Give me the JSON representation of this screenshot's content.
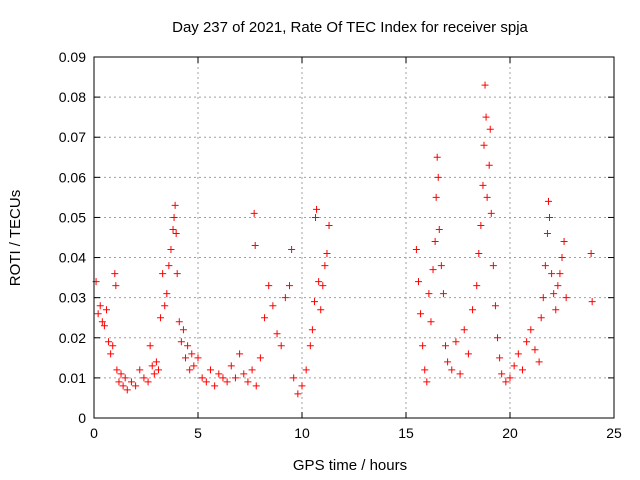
{
  "chart_data": {
    "type": "scatter",
    "title": "Day 237 of 2021, Rate Of TEC Index for receiver spja",
    "xlabel": "GPS time / hours",
    "ylabel": "ROTI / TECUs",
    "xlim": [
      0,
      25
    ],
    "ylim": [
      0,
      0.09
    ],
    "xticks": [
      0,
      5,
      10,
      15,
      20,
      25
    ],
    "xtick_labels": [
      "0",
      "5",
      "10",
      "15",
      "20",
      "25"
    ],
    "yticks": [
      0,
      0.01,
      0.02,
      0.03,
      0.04,
      0.05,
      0.06,
      0.07,
      0.08,
      0.09
    ],
    "ytick_labels": [
      "0",
      "0.01",
      "0.02",
      "0.03",
      "0.04",
      "0.05",
      "0.06",
      "0.07",
      "0.08",
      "0.09"
    ],
    "grid": true,
    "marker": "+",
    "series": [
      {
        "name": "ROTI",
        "color": "#ff0000",
        "points": [
          [
            0.1,
            0.034
          ],
          [
            0.2,
            0.026
          ],
          [
            0.3,
            0.028
          ],
          [
            0.4,
            0.024
          ],
          [
            0.5,
            0.023
          ],
          [
            0.6,
            0.027
          ],
          [
            0.7,
            0.019
          ],
          [
            0.8,
            0.016
          ],
          [
            0.9,
            0.018
          ],
          [
            1.0,
            0.036
          ],
          [
            1.05,
            0.033
          ],
          [
            1.1,
            0.012
          ],
          [
            1.2,
            0.009
          ],
          [
            1.3,
            0.011
          ],
          [
            1.4,
            0.008
          ],
          [
            1.5,
            0.01
          ],
          [
            1.6,
            0.007
          ],
          [
            1.8,
            0.009
          ],
          [
            2.0,
            0.008
          ],
          [
            2.2,
            0.012
          ],
          [
            2.4,
            0.01
          ],
          [
            2.6,
            0.009
          ],
          [
            2.7,
            0.018
          ],
          [
            2.8,
            0.013
          ],
          [
            2.9,
            0.011
          ],
          [
            3.0,
            0.014
          ],
          [
            3.1,
            0.012
          ],
          [
            3.2,
            0.025
          ],
          [
            3.3,
            0.036
          ],
          [
            3.4,
            0.028
          ],
          [
            3.5,
            0.031
          ],
          [
            3.6,
            0.038
          ],
          [
            3.7,
            0.042
          ],
          [
            3.8,
            0.047
          ],
          [
            3.85,
            0.05
          ],
          [
            3.9,
            0.053
          ],
          [
            3.95,
            0.046
          ],
          [
            4.0,
            0.036
          ],
          [
            4.1,
            0.024
          ],
          [
            4.2,
            0.019
          ],
          [
            4.3,
            0.022
          ],
          [
            4.4,
            0.015
          ],
          [
            4.5,
            0.018
          ],
          [
            4.6,
            0.012
          ],
          [
            4.7,
            0.016
          ],
          [
            4.8,
            0.013
          ],
          [
            5.0,
            0.015
          ],
          [
            5.2,
            0.01
          ],
          [
            5.4,
            0.009
          ],
          [
            5.6,
            0.012
          ],
          [
            5.8,
            0.008
          ],
          [
            6.0,
            0.011
          ],
          [
            6.2,
            0.01
          ],
          [
            6.4,
            0.009
          ],
          [
            6.6,
            0.013
          ],
          [
            6.8,
            0.01
          ],
          [
            7.0,
            0.016
          ],
          [
            7.2,
            0.011
          ],
          [
            7.4,
            0.009
          ],
          [
            7.6,
            0.012
          ],
          [
            7.7,
            0.051
          ],
          [
            7.75,
            0.043
          ],
          [
            7.8,
            0.008
          ],
          [
            8.0,
            0.015
          ],
          [
            8.2,
            0.025
          ],
          [
            8.4,
            0.033
          ],
          [
            8.6,
            0.028
          ],
          [
            8.8,
            0.021
          ],
          [
            9.0,
            0.018
          ],
          [
            9.2,
            0.03
          ],
          [
            9.4,
            0.033
          ],
          [
            9.5,
            0.042
          ],
          [
            9.6,
            0.01
          ],
          [
            9.8,
            0.006
          ],
          [
            10.0,
            0.008
          ],
          [
            10.2,
            0.012
          ],
          [
            10.4,
            0.018
          ],
          [
            10.5,
            0.022
          ],
          [
            10.6,
            0.029
          ],
          [
            10.65,
            0.05
          ],
          [
            10.7,
            0.052
          ],
          [
            10.8,
            0.034
          ],
          [
            10.9,
            0.027
          ],
          [
            11.0,
            0.033
          ],
          [
            11.1,
            0.038
          ],
          [
            11.2,
            0.041
          ],
          [
            11.3,
            0.048
          ],
          [
            15.5,
            0.042
          ],
          [
            15.6,
            0.034
          ],
          [
            15.7,
            0.026
          ],
          [
            15.8,
            0.018
          ],
          [
            15.9,
            0.012
          ],
          [
            16.0,
            0.009
          ],
          [
            16.1,
            0.031
          ],
          [
            16.2,
            0.024
          ],
          [
            16.3,
            0.037
          ],
          [
            16.4,
            0.044
          ],
          [
            16.45,
            0.055
          ],
          [
            16.5,
            0.065
          ],
          [
            16.55,
            0.06
          ],
          [
            16.6,
            0.047
          ],
          [
            16.7,
            0.038
          ],
          [
            16.8,
            0.031
          ],
          [
            16.9,
            0.018
          ],
          [
            17.0,
            0.014
          ],
          [
            17.2,
            0.012
          ],
          [
            17.4,
            0.019
          ],
          [
            17.6,
            0.011
          ],
          [
            17.8,
            0.022
          ],
          [
            18.0,
            0.016
          ],
          [
            18.2,
            0.027
          ],
          [
            18.4,
            0.033
          ],
          [
            18.5,
            0.041
          ],
          [
            18.6,
            0.048
          ],
          [
            18.7,
            0.058
          ],
          [
            18.75,
            0.068
          ],
          [
            18.8,
            0.083
          ],
          [
            18.85,
            0.075
          ],
          [
            18.9,
            0.055
          ],
          [
            19.0,
            0.063
          ],
          [
            19.05,
            0.072
          ],
          [
            19.1,
            0.051
          ],
          [
            19.2,
            0.038
          ],
          [
            19.3,
            0.028
          ],
          [
            19.4,
            0.02
          ],
          [
            19.5,
            0.015
          ],
          [
            19.6,
            0.011
          ],
          [
            19.8,
            0.009
          ],
          [
            20.0,
            0.01
          ],
          [
            20.2,
            0.013
          ],
          [
            20.4,
            0.016
          ],
          [
            20.6,
            0.012
          ],
          [
            20.8,
            0.019
          ],
          [
            21.0,
            0.022
          ],
          [
            21.2,
            0.017
          ],
          [
            21.4,
            0.014
          ],
          [
            21.5,
            0.025
          ],
          [
            21.6,
            0.03
          ],
          [
            21.7,
            0.038
          ],
          [
            21.8,
            0.046
          ],
          [
            21.85,
            0.054
          ],
          [
            21.9,
            0.05
          ],
          [
            22.0,
            0.036
          ],
          [
            22.1,
            0.031
          ],
          [
            22.2,
            0.027
          ],
          [
            22.3,
            0.033
          ],
          [
            22.4,
            0.036
          ],
          [
            22.5,
            0.04
          ],
          [
            22.6,
            0.044
          ],
          [
            22.7,
            0.03
          ],
          [
            23.9,
            0.041
          ],
          [
            23.95,
            0.029
          ]
        ]
      }
    ]
  }
}
